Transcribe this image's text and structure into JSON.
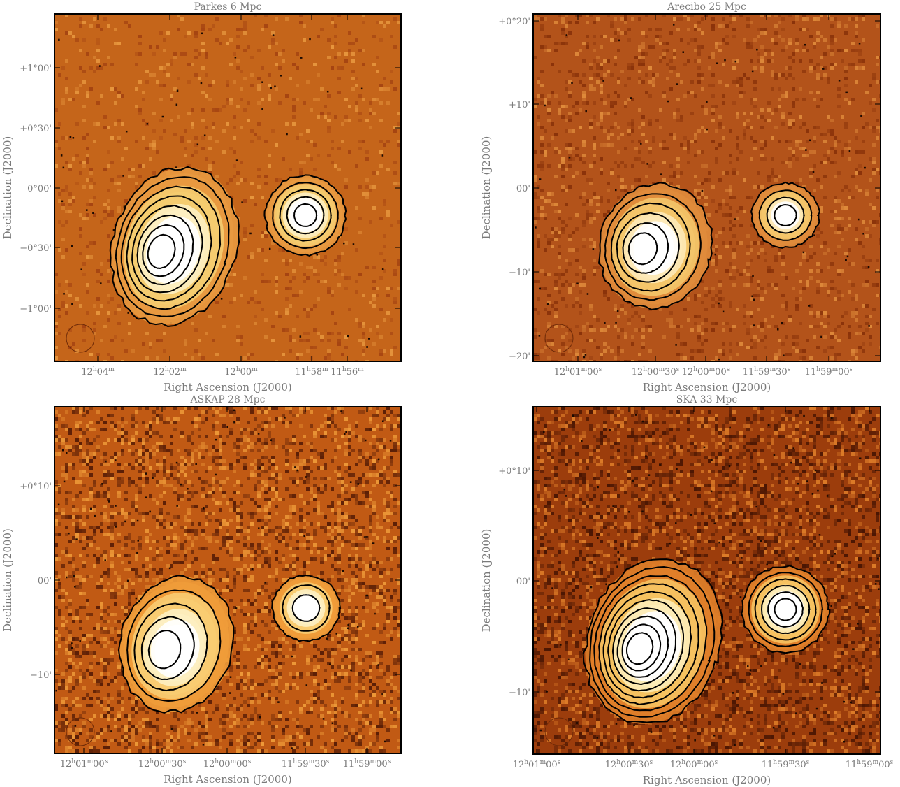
{
  "chart_data": [
    {
      "type": "heatmap",
      "title": "Parkes 6 Mpc",
      "xlabel": "Right Ascension (J2000)",
      "ylabel": "Declination (J2000)",
      "x_ticks": [
        {
          "h": "12",
          "m": "04",
          "s": ""
        },
        {
          "h": "12",
          "m": "02",
          "s": ""
        },
        {
          "h": "12",
          "m": "00",
          "s": ""
        },
        {
          "h": "11",
          "m": "58",
          "s": ""
        },
        {
          "h": "11",
          "m": "56",
          "s": ""
        }
      ],
      "y_ticks": [
        "+1°00'",
        "+0°30'",
        "0°00'",
        "−0°30'",
        "−1°00'"
      ],
      "colormap": [
        "#a54412",
        "#c5651a",
        "#e89940",
        "#f5cc70",
        "#fdf0c2",
        "#ffffff"
      ],
      "noise_level": 0.1,
      "sources": [
        {
          "name": "large",
          "levels": 8
        },
        {
          "name": "small",
          "levels": 5
        }
      ],
      "contour_color": "#000000"
    },
    {
      "type": "heatmap",
      "title": "Arecibo 25 Mpc",
      "xlabel": "Right Ascension (J2000)",
      "ylabel": "Declination (J2000)",
      "x_ticks": [
        {
          "h": "12",
          "m": "01",
          "s": "00"
        },
        {
          "h": "12",
          "m": "00",
          "s": "30"
        },
        {
          "h": "12",
          "m": "00",
          "s": "00"
        },
        {
          "h": "11",
          "m": "59",
          "s": "30"
        },
        {
          "h": "11",
          "m": "59",
          "s": "00"
        }
      ],
      "y_ticks": [
        "+0°20'",
        "+10'",
        "00'",
        "−10'",
        "−20'"
      ],
      "colormap": [
        "#8a330a",
        "#b3531a",
        "#e08c3c",
        "#f4c56a",
        "#fde9b8",
        "#ffffff"
      ],
      "noise_level": 0.18,
      "sources": [
        {
          "name": "large",
          "levels": 6
        },
        {
          "name": "small",
          "levels": 4
        }
      ],
      "contour_color": "#000000"
    },
    {
      "type": "heatmap",
      "title": "ASKAP 28 Mpc",
      "xlabel": "Right Ascension (J2000)",
      "ylabel": "Declination (J2000)",
      "x_ticks": [
        {
          "h": "12",
          "m": "01",
          "s": "00"
        },
        {
          "h": "12",
          "m": "00",
          "s": "30"
        },
        {
          "h": "12",
          "m": "00",
          "s": "00"
        },
        {
          "h": "11",
          "m": "59",
          "s": "30"
        },
        {
          "h": "11",
          "m": "59",
          "s": "00"
        }
      ],
      "y_ticks": [
        "+0°10'",
        "00'",
        "−10'"
      ],
      "colormap": [
        "#5a1e06",
        "#c15a14",
        "#ef9c3a",
        "#f8cc72",
        "#fdf0c2",
        "#ffffff"
      ],
      "noise_level": 0.32,
      "sources": [
        {
          "name": "large",
          "levels": 5
        },
        {
          "name": "small",
          "levels": 3
        }
      ],
      "contour_color": "#000000"
    },
    {
      "type": "heatmap",
      "title": "SKA 33 Mpc",
      "xlabel": "Right Ascension (J2000)",
      "ylabel": "Declination (J2000)",
      "x_ticks": [
        {
          "h": "12",
          "m": "01",
          "s": "00"
        },
        {
          "h": "12",
          "m": "00",
          "s": "30"
        },
        {
          "h": "12",
          "m": "00",
          "s": "00"
        },
        {
          "h": "11",
          "m": "59",
          "s": "30"
        },
        {
          "h": "11",
          "m": "59",
          "s": "00"
        }
      ],
      "y_ticks": [
        "+0°10'",
        "00'",
        "−10'"
      ],
      "colormap": [
        "#4a1603",
        "#9c3d0c",
        "#e07f2a",
        "#f6c260",
        "#fdecb8",
        "#ffffff"
      ],
      "noise_level": 0.35,
      "sources": [
        {
          "name": "large",
          "levels": 10
        },
        {
          "name": "small",
          "levels": 6
        }
      ],
      "contour_color": "#000000"
    }
  ]
}
